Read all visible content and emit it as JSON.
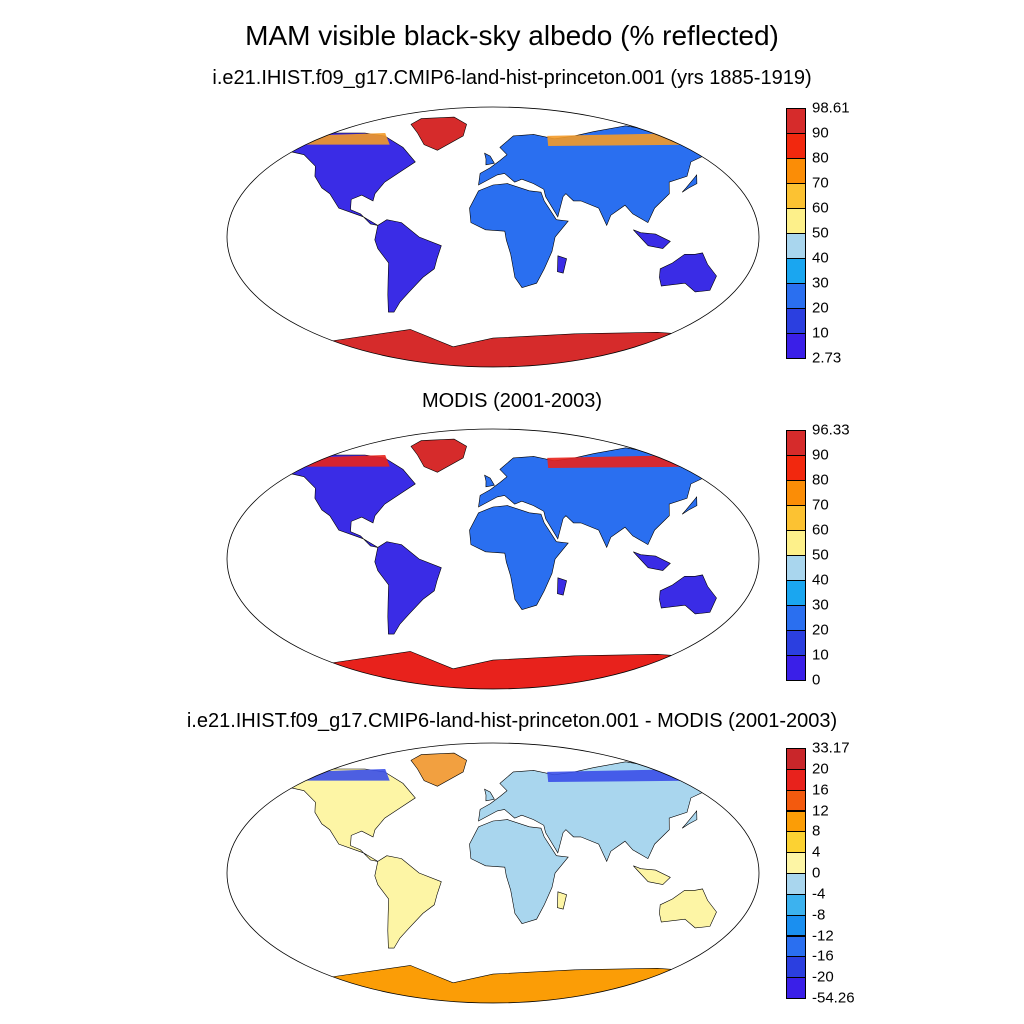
{
  "title": "MAM visible black-sky albedo (% reflected)",
  "panels": [
    {
      "subtitle": "i.e21.IHIST.f09_g17.CMIP6-land-hist-princeton.001 (yrs 1885-1919)",
      "colors": [
        "#3a1fe8",
        "#2b3fe0",
        "#2a6ff0",
        "#1aa6f0",
        "#a9d6ee",
        "#fdf08a",
        "#fcc232",
        "#fb8d06",
        "#f2280e",
        "#d62b2b"
      ],
      "labels": [
        "98.61",
        "90",
        "80",
        "70",
        "60",
        "50",
        "40",
        "30",
        "20",
        "10",
        "2.73"
      ],
      "land": {
        "default": "#3a2ce6",
        "midlat": "#2a6ff0",
        "antarctica": "#d62b2b",
        "greenland": "#d62b2b",
        "arctic": "#f39a28"
      }
    },
    {
      "subtitle": "MODIS (2001-2003)",
      "colors": [
        "#3a1fe8",
        "#2b3fe0",
        "#2a6ff0",
        "#1aa6f0",
        "#a9d6ee",
        "#fdf08a",
        "#fcc232",
        "#fb8d06",
        "#f2280e",
        "#d62b2b"
      ],
      "labels": [
        "96.33",
        "90",
        "80",
        "70",
        "60",
        "50",
        "40",
        "30",
        "20",
        "10",
        "0"
      ],
      "land": {
        "default": "#3a2ce6",
        "midlat": "#2a6ff0",
        "antarctica": "#e8221c",
        "greenland": "#d62b2b",
        "arctic": "#e8221c"
      }
    },
    {
      "subtitle": "i.e21.IHIST.f09_g17.CMIP6-land-hist-princeton.001 - MODIS (2001-2003)",
      "colors": [
        "#3a1fe8",
        "#2b3fe0",
        "#2a6ff0",
        "#1a8ff0",
        "#3cb2ef",
        "#a9d6ee",
        "#fdf5a5",
        "#fcd232",
        "#fb9d06",
        "#f35a0e",
        "#e8221c",
        "#c9262a"
      ],
      "labels": [
        "33.17",
        "20",
        "16",
        "12",
        "8",
        "4",
        "0",
        "-4",
        "-8",
        "-12",
        "-16",
        "-20",
        "-54.26"
      ],
      "land": {
        "default": "#fdf5a5",
        "midlat": "#a9d6ee",
        "antarctica": "#fb9d06",
        "greenland": "#f2a040",
        "arctic": "#3a4fe8"
      }
    }
  ]
}
